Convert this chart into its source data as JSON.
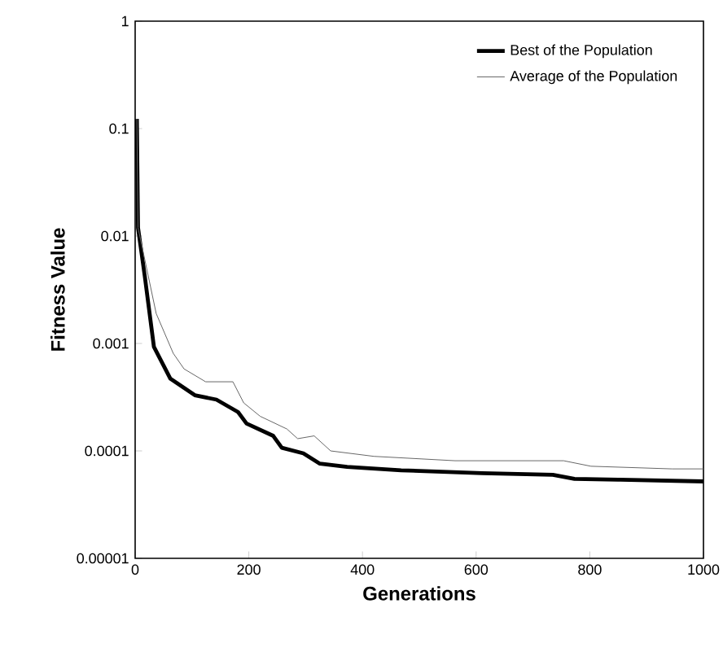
{
  "chart_data": {
    "type": "line",
    "xlabel": "Generations",
    "ylabel": "Fitness Value",
    "log": "y",
    "legend": "top right",
    "grid": false,
    "xlim": [
      0,
      1000
    ],
    "xticks": [
      0,
      200,
      400,
      600,
      800,
      1000
    ],
    "ylim": [
      1e-05,
      1
    ],
    "yticks": [
      {
        "value": 1,
        "label": "1"
      },
      {
        "value": 0.1,
        "label": "0.1"
      },
      {
        "value": 0.01,
        "label": "0.01"
      },
      {
        "value": 0.001,
        "label": "0.001"
      },
      {
        "value": 0.0001,
        "label": "0.0001"
      },
      {
        "value": 1e-05,
        "label": "0.00001"
      }
    ],
    "series": [
      {
        "name": "Best of the Population",
        "color": "#000000",
        "line_style": "solid",
        "x": [
          3,
          5,
          17,
          33,
          62,
          105,
          143,
          181,
          196,
          243,
          258,
          296,
          325,
          373,
          468,
          611,
          735,
          773,
          850,
          1000
        ],
        "values": [
          0.123,
          0.012,
          0.0042,
          0.00093,
          0.00047,
          0.00033,
          0.0003,
          0.00023,
          0.00018,
          0.000138,
          0.000107,
          9.5e-05,
          7.6e-05,
          7.1e-05,
          6.6e-05,
          6.2e-05,
          6e-05,
          5.5e-05,
          5.4e-05,
          5.2e-05
        ]
      },
      {
        "name": "Average of the Population",
        "color": "#666666",
        "line_style": "solid",
        "x": [
          3,
          5,
          37,
          67,
          86,
          124,
          172,
          191,
          220,
          267,
          286,
          315,
          344,
          420,
          563,
          754,
          802,
          945,
          1000
        ],
        "values": [
          0.123,
          0.012,
          0.0019,
          0.00081,
          0.00058,
          0.00044,
          0.00044,
          0.00028,
          0.00021,
          0.00016,
          0.00013,
          0.000138,
          0.0001,
          8.9e-05,
          8.1e-05,
          8.1e-05,
          7.2e-05,
          6.8e-05,
          6.8e-05
        ]
      }
    ]
  }
}
